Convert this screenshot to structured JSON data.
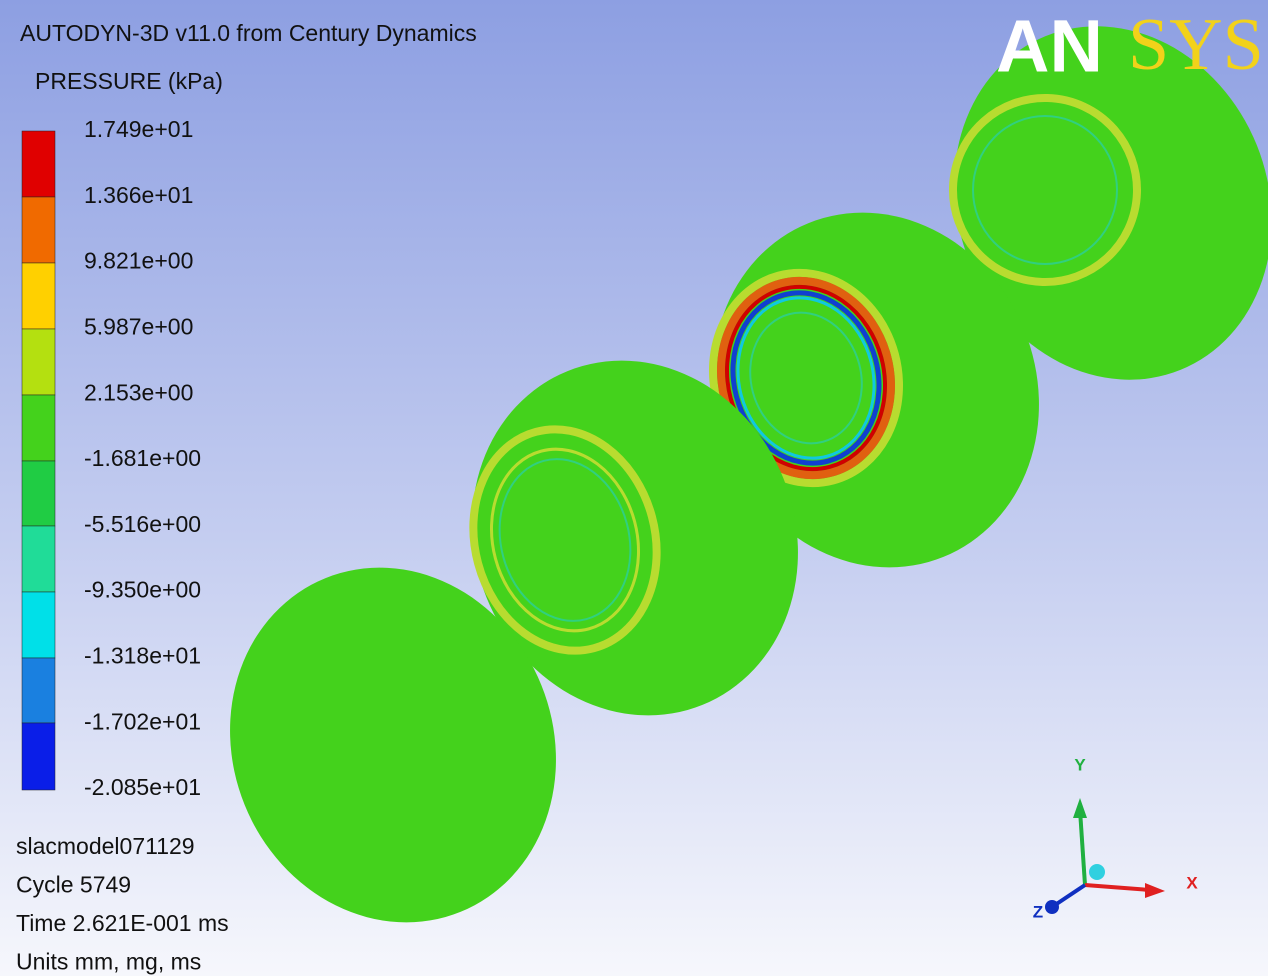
{
  "header": {
    "title": "AUTODYN-3D v11.0 from Century Dynamics",
    "logo_a": "AN",
    "logo_b": "SYS"
  },
  "legend": {
    "title": "PRESSURE (kPa)",
    "labels": [
      "1.749e+01",
      "1.366e+01",
      "9.821e+00",
      "5.987e+00",
      "2.153e+00",
      "-1.681e+00",
      "-5.516e+00",
      "-9.350e+00",
      "-1.318e+01",
      "-1.702e+01",
      "-2.085e+01"
    ]
  },
  "footer": {
    "lines": [
      "slacmodel071129",
      "Cycle 5749",
      "Time 2.621E-001 ms",
      "Units mm, mg, ms"
    ]
  },
  "triad": {
    "x": "X",
    "y": "Y",
    "z": "Z"
  }
}
